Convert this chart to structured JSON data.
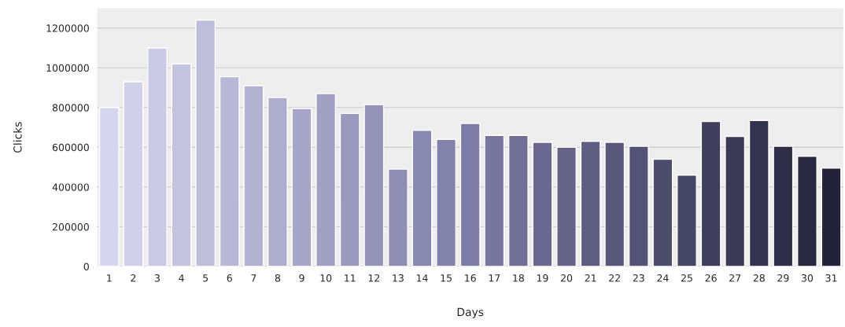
{
  "chart_data": {
    "type": "bar",
    "xlabel": "Days",
    "ylabel": "Clicks",
    "categories": [
      "1",
      "2",
      "3",
      "4",
      "5",
      "6",
      "7",
      "8",
      "9",
      "10",
      "11",
      "12",
      "13",
      "14",
      "15",
      "16",
      "17",
      "18",
      "19",
      "20",
      "21",
      "22",
      "23",
      "24",
      "25",
      "26",
      "27",
      "28",
      "29",
      "30",
      "31"
    ],
    "values": [
      800000,
      930000,
      1100000,
      1020000,
      1240000,
      955000,
      910000,
      850000,
      795000,
      870000,
      770000,
      815000,
      490000,
      685000,
      640000,
      720000,
      660000,
      660000,
      625000,
      600000,
      630000,
      625000,
      605000,
      540000,
      460000,
      730000,
      655000,
      735000,
      605000,
      555000,
      495000
    ],
    "colors": [
      "#d6d6ee",
      "#d0d0e9",
      "#cacae4",
      "#c4c4e0",
      "#bebedb",
      "#b8b8d6",
      "#b2b2d1",
      "#acaccc",
      "#a6a6c8",
      "#a0a0c3",
      "#9a9abe",
      "#9494b9",
      "#8e8eb4",
      "#8888b0",
      "#8282ab",
      "#7c7ca6",
      "#76769f",
      "#707097",
      "#6a6a90",
      "#646489",
      "#5e5e82",
      "#58587b",
      "#525274",
      "#4c4c6c",
      "#464665",
      "#40405e",
      "#3a3a57",
      "#343450",
      "#2e2e48",
      "#282841",
      "#22223a"
    ],
    "ylim": [
      0,
      1300000
    ],
    "yticks": [
      0,
      200000,
      400000,
      600000,
      800000,
      1000000,
      1200000
    ],
    "grid": "y",
    "legend": false
  }
}
